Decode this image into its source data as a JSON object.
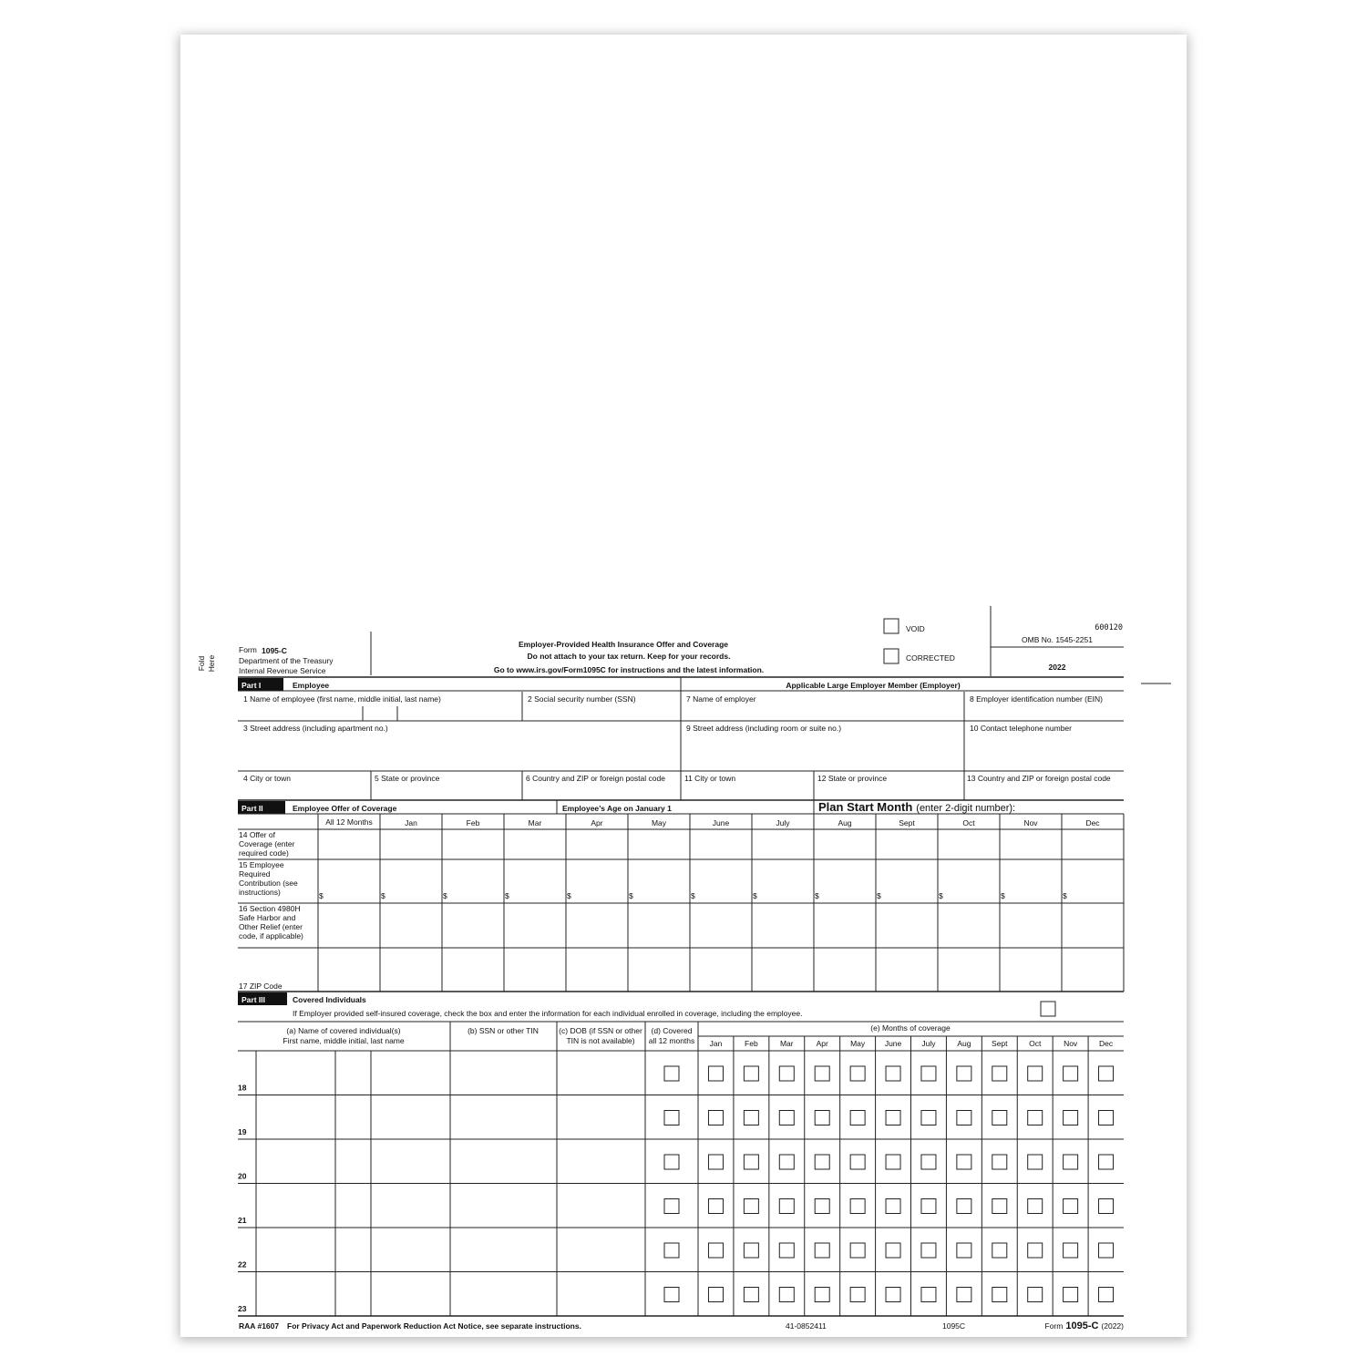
{
  "header": {
    "form_word": "Form",
    "form_number": "1095-C",
    "department": "Department of the Treasury",
    "agency": "Internal Revenue Service",
    "title": "Employer-Provided Health Insurance Offer and Coverage",
    "notice": "Do not attach to your tax return. Keep for your records.",
    "instructions": "Go to www.irs.gov/Form1095C for instructions and the latest information.",
    "void": "VOID",
    "corrected": "CORRECTED",
    "code": "600120",
    "omb": "OMB No. 1545-2251",
    "year": "2022",
    "fold": [
      "Fold",
      "Here"
    ]
  },
  "part1": {
    "badge": "Part I",
    "title": "Employee",
    "employer_title": "Applicable Large Employer Member (Employer)",
    "fields": [
      "1 Name of employee (first name, middle initial, last name)",
      "2 Social security number (SSN)",
      "7 Name of employer",
      "8 Employer identification number (EIN)",
      "3 Street address (including apartment no.)",
      "9 Street address (including room or suite no.)",
      "10 Contact telephone number",
      "4 City or town",
      "5 State or province",
      "6 Country and ZIP or foreign postal code",
      "11 City or town",
      "12 State or province",
      "13 Country and ZIP or foreign postal code"
    ]
  },
  "part2": {
    "badge": "Part II",
    "title": "Employee Offer of Coverage",
    "age": "Employee’s Age on January 1",
    "plan": "Plan Start Month",
    "plan_note": "(enter 2-digit number):",
    "all_months": "All 12 Months",
    "dollar": "$",
    "rows": [
      [
        "14 Offer of",
        "Coverage (enter",
        "required code)"
      ],
      [
        "15 Employee",
        "Required",
        "Contribution (see",
        "instructions)"
      ],
      [
        "16 Section 4980H",
        "Safe Harbor and",
        "Other Relief (enter",
        "code, if applicable)"
      ],
      [
        "17 ZIP Code"
      ]
    ]
  },
  "months": [
    "Jan",
    "Feb",
    "Mar",
    "Apr",
    "May",
    "June",
    "July",
    "Aug",
    "Sept",
    "Oct",
    "Nov",
    "Dec"
  ],
  "part3": {
    "badge": "Part III",
    "title": "Covered Individuals",
    "note": "If Employer provided self-insured coverage, check the box and enter the information for each individual enrolled in coverage, including the employee.",
    "col_a": [
      "(a) Name of covered individual(s)",
      "First name, middle initial, last name"
    ],
    "col_b": "(b) SSN or other TIN",
    "col_c": [
      "(c) DOB (if SSN or other",
      "TIN is not available)"
    ],
    "col_d": [
      "(d) Covered",
      "all 12 months"
    ],
    "col_e": "(e) Months of coverage",
    "rows": [
      "18",
      "19",
      "20",
      "21",
      "22",
      "23"
    ]
  },
  "footer": {
    "raa": "RAA #1607",
    "privacy": "For Privacy Act and Paperwork Reduction Act Notice, see separate instructions.",
    "cat": "41-0852411",
    "code": "1095C",
    "form_word": "Form",
    "form_number": "1095-C",
    "year": "(2022)"
  }
}
